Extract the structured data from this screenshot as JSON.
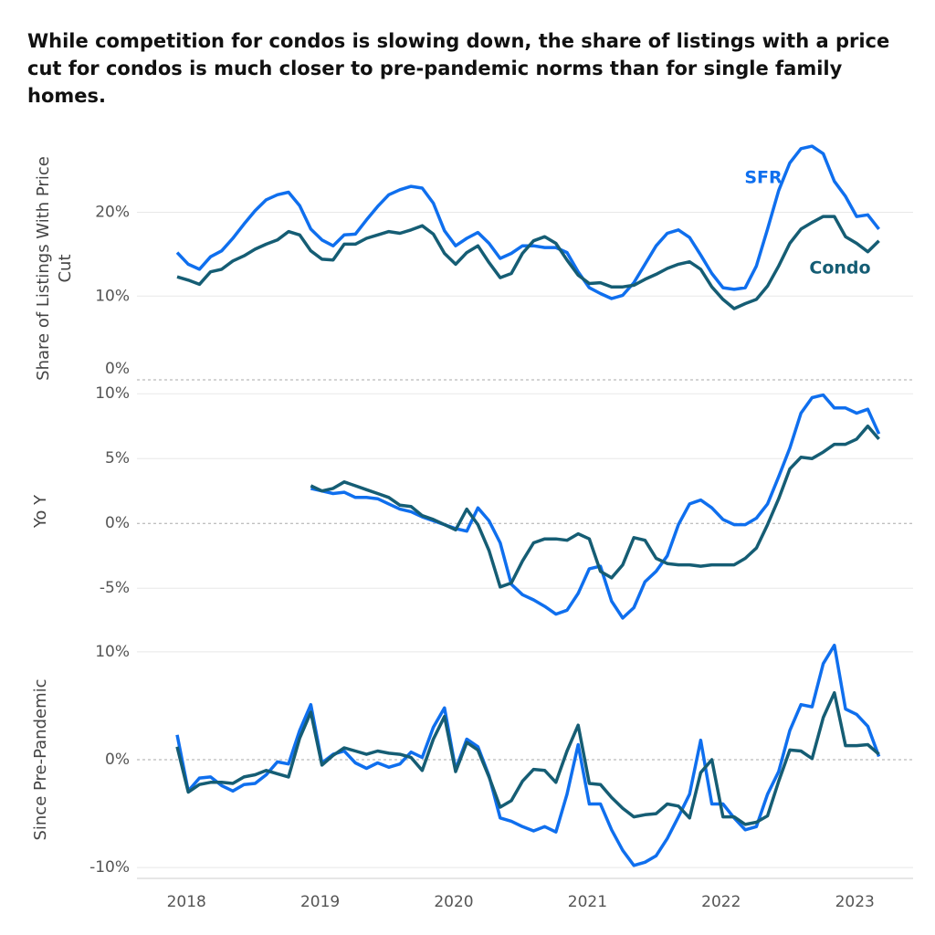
{
  "title": "While competition for condos is slowing down, the share of listings with a price cut for condos is much closer to pre-pandemic norms than for single family homes.",
  "chart_data": [
    {
      "type": "line",
      "ylabel": "Share of Listings With Price Cut",
      "ylim": [
        0,
        29
      ],
      "yticks": [
        {
          "value": 0,
          "label": "0%"
        },
        {
          "value": 10,
          "label": "10%"
        },
        {
          "value": 20,
          "label": "20%"
        }
      ],
      "series": [
        {
          "name": "SFR",
          "color": "#0f6fee",
          "values": [
            15.2,
            13.8,
            13.2,
            14.7,
            15.4,
            16.9,
            18.6,
            20.2,
            21.5,
            22.1,
            22.4,
            20.8,
            18,
            16.7,
            16,
            17.3,
            17.4,
            19.1,
            20.7,
            22.1,
            22.7,
            23.1,
            22.9,
            21.1,
            17.8,
            16,
            16.9,
            17.6,
            16.3,
            14.5,
            15.1,
            16,
            16,
            15.8,
            15.8,
            15.2,
            12.9,
            11,
            10.3,
            9.7,
            10.1,
            11.6,
            13.8,
            16,
            17.5,
            17.9,
            17,
            14.9,
            12.7,
            11,
            10.8,
            11,
            13.6,
            18,
            22.6,
            25.9,
            27.6,
            27.9,
            27,
            23.7,
            21.9,
            19.5,
            19.7,
            18
          ]
        },
        {
          "name": "Condo",
          "color": "#155d74",
          "values": [
            12.3,
            11.9,
            11.4,
            12.9,
            13.2,
            14.2,
            14.8,
            15.6,
            16.2,
            16.7,
            17.7,
            17.3,
            15.4,
            14.4,
            14.3,
            16.2,
            16.2,
            16.9,
            17.3,
            17.7,
            17.5,
            17.9,
            18.4,
            17.4,
            15.1,
            13.8,
            15.2,
            16,
            14,
            12.2,
            12.7,
            15.1,
            16.6,
            17.1,
            16.3,
            14.3,
            12.5,
            11.5,
            11.6,
            11.1,
            11.1,
            11.3,
            12,
            12.6,
            13.3,
            13.8,
            14.1,
            13.2,
            11.1,
            9.6,
            8.5,
            9.1,
            9.6,
            11.2,
            13.6,
            16.3,
            18,
            18.8,
            19.5,
            19.5,
            17.1,
            16.3,
            15.3,
            16.6
          ]
        }
      ]
    },
    {
      "type": "line",
      "ylabel": "Yo Y",
      "ylim": [
        -9,
        11
      ],
      "yticks": [
        {
          "value": -5,
          "label": "-5%"
        },
        {
          "value": 0,
          "label": "0%"
        },
        {
          "value": 5,
          "label": "5%"
        },
        {
          "value": 10,
          "label": "10%"
        }
      ],
      "series": [
        {
          "color": "#0f6fee",
          "values": [
            null,
            null,
            null,
            null,
            null,
            null,
            null,
            null,
            null,
            null,
            null,
            null,
            2.7,
            2.5,
            2.3,
            2.4,
            2.0,
            2.0,
            1.9,
            1.5,
            1.1,
            0.9,
            0.5,
            0.2,
            -0.1,
            -0.4,
            -0.6,
            1.2,
            0.2,
            -1.5,
            -4.7,
            -5.5,
            -5.9,
            -6.4,
            -7,
            -6.7,
            -5.4,
            -3.5,
            -3.3,
            -6,
            -7.3,
            -6.5,
            -4.5,
            -3.7,
            -2.5,
            -0.1,
            1.5,
            1.8,
            1.2,
            0.3,
            -0.1,
            -0.1,
            0.4,
            1.5,
            3.6,
            5.8,
            8.5,
            9.7,
            9.9,
            8.9,
            8.9,
            8.5,
            8.8,
            6.9
          ]
        },
        {
          "color": "#155d74",
          "values": [
            null,
            null,
            null,
            null,
            null,
            null,
            null,
            null,
            null,
            null,
            null,
            null,
            2.9,
            2.5,
            2.7,
            3.2,
            2.9,
            2.6,
            2.3,
            2.0,
            1.4,
            1.3,
            0.6,
            0.3,
            -0.1,
            -0.5,
            1.1,
            -0.1,
            -2.1,
            -4.9,
            -4.6,
            -2.9,
            -1.5,
            -1.2,
            -1.2,
            -1.3,
            -0.8,
            -1.2,
            -3.7,
            -4.2,
            -3.2,
            -1.1,
            -1.3,
            -2.7,
            -3.1,
            -3.2,
            -3.2,
            -3.3,
            -3.2,
            -3.2,
            -3.2,
            -2.7,
            -1.9,
            -0.1,
            1.9,
            4.2,
            5.1,
            5.0,
            5.5,
            6.1,
            6.1,
            6.5,
            7.5,
            6.5
          ]
        }
      ]
    },
    {
      "type": "line",
      "ylabel": "Since Pre-Pandemic",
      "ylim": [
        -11,
        11
      ],
      "yticks": [
        {
          "value": -10,
          "label": "-10%"
        },
        {
          "value": 0,
          "label": "0%"
        },
        {
          "value": 10,
          "label": "10%"
        }
      ],
      "categories": [
        null,
        "2018",
        null,
        null,
        null,
        null,
        null,
        null,
        null,
        null,
        null,
        null,
        null,
        "2019",
        null,
        null,
        null,
        null,
        null,
        null,
        null,
        null,
        null,
        null,
        null,
        "2020",
        null,
        null,
        null,
        null,
        null,
        null,
        null,
        null,
        null,
        null,
        null,
        "2021",
        null,
        null,
        null,
        null,
        null,
        null,
        null,
        null,
        null,
        null,
        null,
        "2022",
        null,
        null,
        null,
        null,
        null,
        null,
        null,
        null,
        null,
        null,
        null,
        "2023",
        null,
        null
      ],
      "series": [
        {
          "color": "#0f6fee",
          "values": [
            2.3,
            -2.9,
            -1.7,
            -1.6,
            -2.4,
            -2.9,
            -2.3,
            -2.2,
            -1.4,
            -0.2,
            -0.4,
            2.7,
            5.1,
            -0.3,
            0.5,
            0.8,
            -0.3,
            -0.8,
            -0.3,
            -0.7,
            -0.4,
            0.7,
            0.2,
            3.0,
            4.8,
            -0.9,
            1.9,
            1.2,
            -1.5,
            -5.4,
            -5.7,
            -6.2,
            -6.6,
            -6.2,
            -6.7,
            -3.2,
            1.4,
            -4.1,
            -4.1,
            -6.5,
            -8.4,
            -9.8,
            -9.5,
            -8.9,
            -7.3,
            -5.3,
            -3.2,
            1.8,
            -4.1,
            -4.1,
            -5.4,
            -6.5,
            -6.2,
            -3.2,
            -1.1,
            2.7,
            5.1,
            4.9,
            8.9,
            10.6,
            4.7,
            4.2,
            3.1,
            0.3
          ]
        },
        {
          "color": "#155d74",
          "values": [
            1.2,
            -3.0,
            -2.3,
            -2.1,
            -2.1,
            -2.2,
            -1.6,
            -1.4,
            -1.0,
            -1.3,
            -1.6,
            2.0,
            4.4,
            -0.5,
            0.4,
            1.1,
            0.8,
            0.5,
            0.8,
            0.6,
            0.5,
            0.2,
            -1.0,
            1.9,
            4.0,
            -1.1,
            1.6,
            0.9,
            -1.6,
            -4.4,
            -3.8,
            -2.0,
            -0.9,
            -1.0,
            -2.1,
            0.8,
            3.2,
            -2.2,
            -2.3,
            -3.5,
            -4.5,
            -5.3,
            -5.1,
            -5.0,
            -4.1,
            -4.3,
            -5.4,
            -1.2,
            0.0,
            -5.3,
            -5.3,
            -6.0,
            -5.8,
            -5.2,
            -2.0,
            0.9,
            0.8,
            0.1,
            3.9,
            6.2,
            1.3,
            1.3,
            1.4,
            0.5
          ]
        }
      ]
    }
  ]
}
